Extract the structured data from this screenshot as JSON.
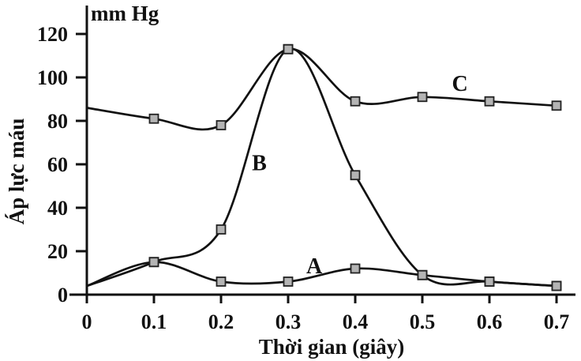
{
  "page": {
    "background": "#ffffff",
    "description": "Line chart of blood pressure (mm Hg) versus time (seconds) with three curves A, B and C"
  },
  "chart_data": {
    "type": "line",
    "title": "",
    "ylabel": "Áp lực máu",
    "y_axis_unit_label": "mm Hg",
    "xlabel": "Thời gian (giây)",
    "x_ticks": [
      0,
      0.1,
      0.2,
      0.3,
      0.4,
      0.5,
      0.6,
      0.7
    ],
    "x_tick_labels": [
      "0",
      "0.1",
      "0.2",
      "0.3",
      "0.4",
      "0.5",
      "0.6",
      "0.7"
    ],
    "y_ticks": [
      0,
      20,
      40,
      60,
      80,
      100,
      120
    ],
    "y_tick_labels": [
      "0",
      "20",
      "40",
      "60",
      "80",
      "100",
      "120"
    ],
    "xlim": [
      0,
      0.73
    ],
    "ylim": [
      0,
      133
    ],
    "grid": false,
    "legend_position": "none",
    "x": [
      0,
      0.1,
      0.2,
      0.3,
      0.4,
      0.5,
      0.6,
      0.7
    ],
    "series": [
      {
        "name": "A",
        "values": [
          4,
          15,
          6,
          6,
          12,
          9,
          6,
          4
        ],
        "label": {
          "text": "A",
          "x": 0.339,
          "y": 13.5
        }
      },
      {
        "name": "B",
        "values": [
          4,
          15,
          30,
          113,
          55,
          9,
          6,
          4
        ],
        "label": {
          "text": "B",
          "x": 0.257,
          "y": 61
        }
      },
      {
        "name": "C",
        "values": [
          86,
          81,
          78,
          113,
          89,
          91,
          89,
          87
        ],
        "label": {
          "text": "C",
          "x": 0.556,
          "y": 97.5
        }
      }
    ],
    "marker": "square",
    "marker_size": 11,
    "marker_fill": "#b4b4b4",
    "marker_edge": "#222222",
    "line_color": "#111111",
    "axis_color": "#111111",
    "markers_from_index": 1
  }
}
